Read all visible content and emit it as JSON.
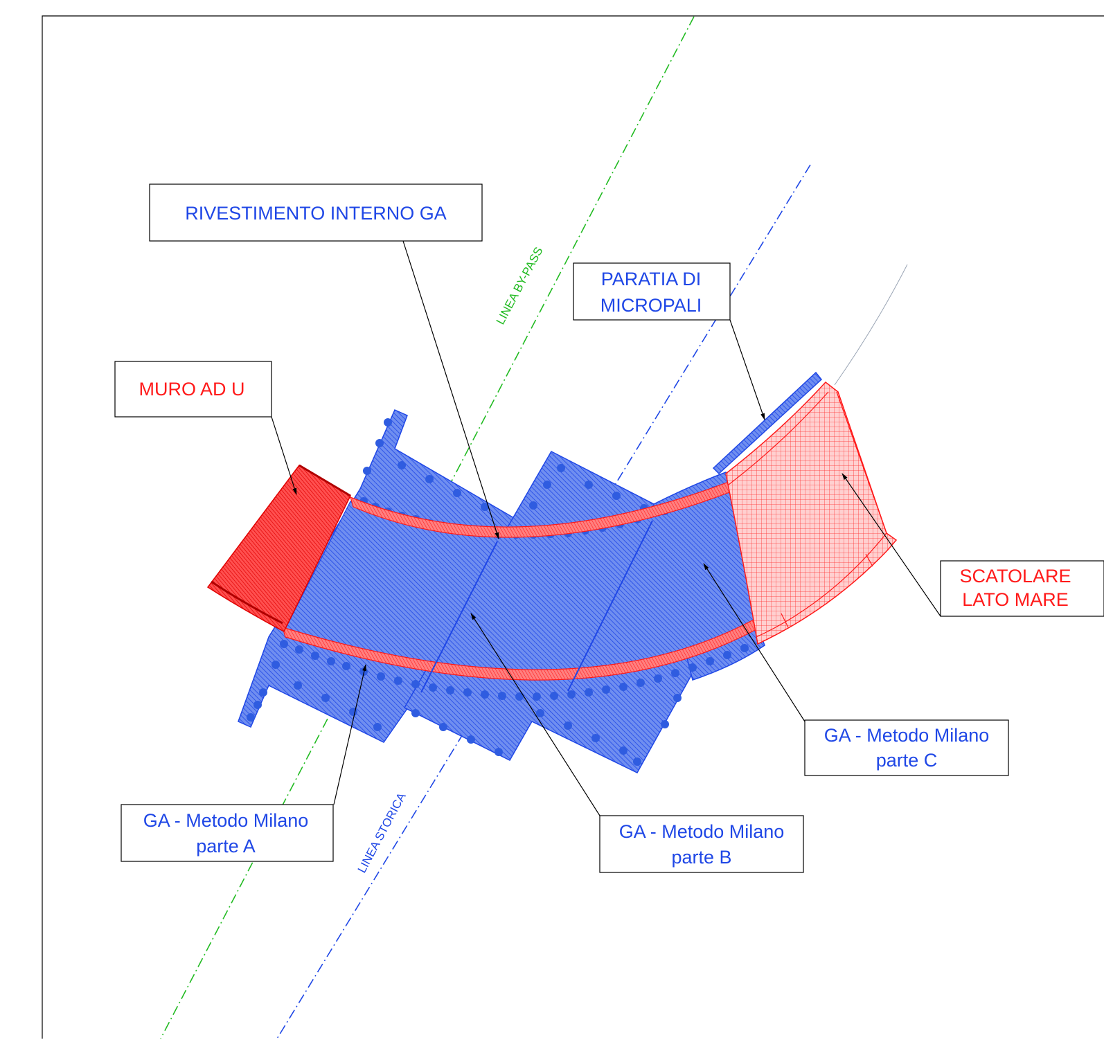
{
  "colors": {
    "blue": "#1f47e6",
    "blue_fill": "#5f7fe6",
    "blue_dots": "#2f5ce0",
    "red": "#ff1a1a",
    "red_fill": "#ff4d4d",
    "red_light": "#ffb3b3",
    "green": "#22bb22",
    "frame": "#000000"
  },
  "railway_lines": {
    "bypass": "LINEA BY-PASS",
    "storica": "LINEA STORICA"
  },
  "callouts": {
    "rivestimento": "RIVESTIMENTO INTERNO GA",
    "paratia_line1": "PARATIA DI",
    "paratia_line2": "MICROPALI",
    "muro": "MURO AD U",
    "scatolare_line1": "SCATOLARE",
    "scatolare_line2": "LATO MARE",
    "ga_a_line1": "GA - Metodo Milano",
    "ga_a_line2": "parte A",
    "ga_b_line1": "GA - Metodo Milano",
    "ga_b_line2": "parte B",
    "ga_c_line1": "GA - Metodo Milano",
    "ga_c_line2": "parte C"
  }
}
